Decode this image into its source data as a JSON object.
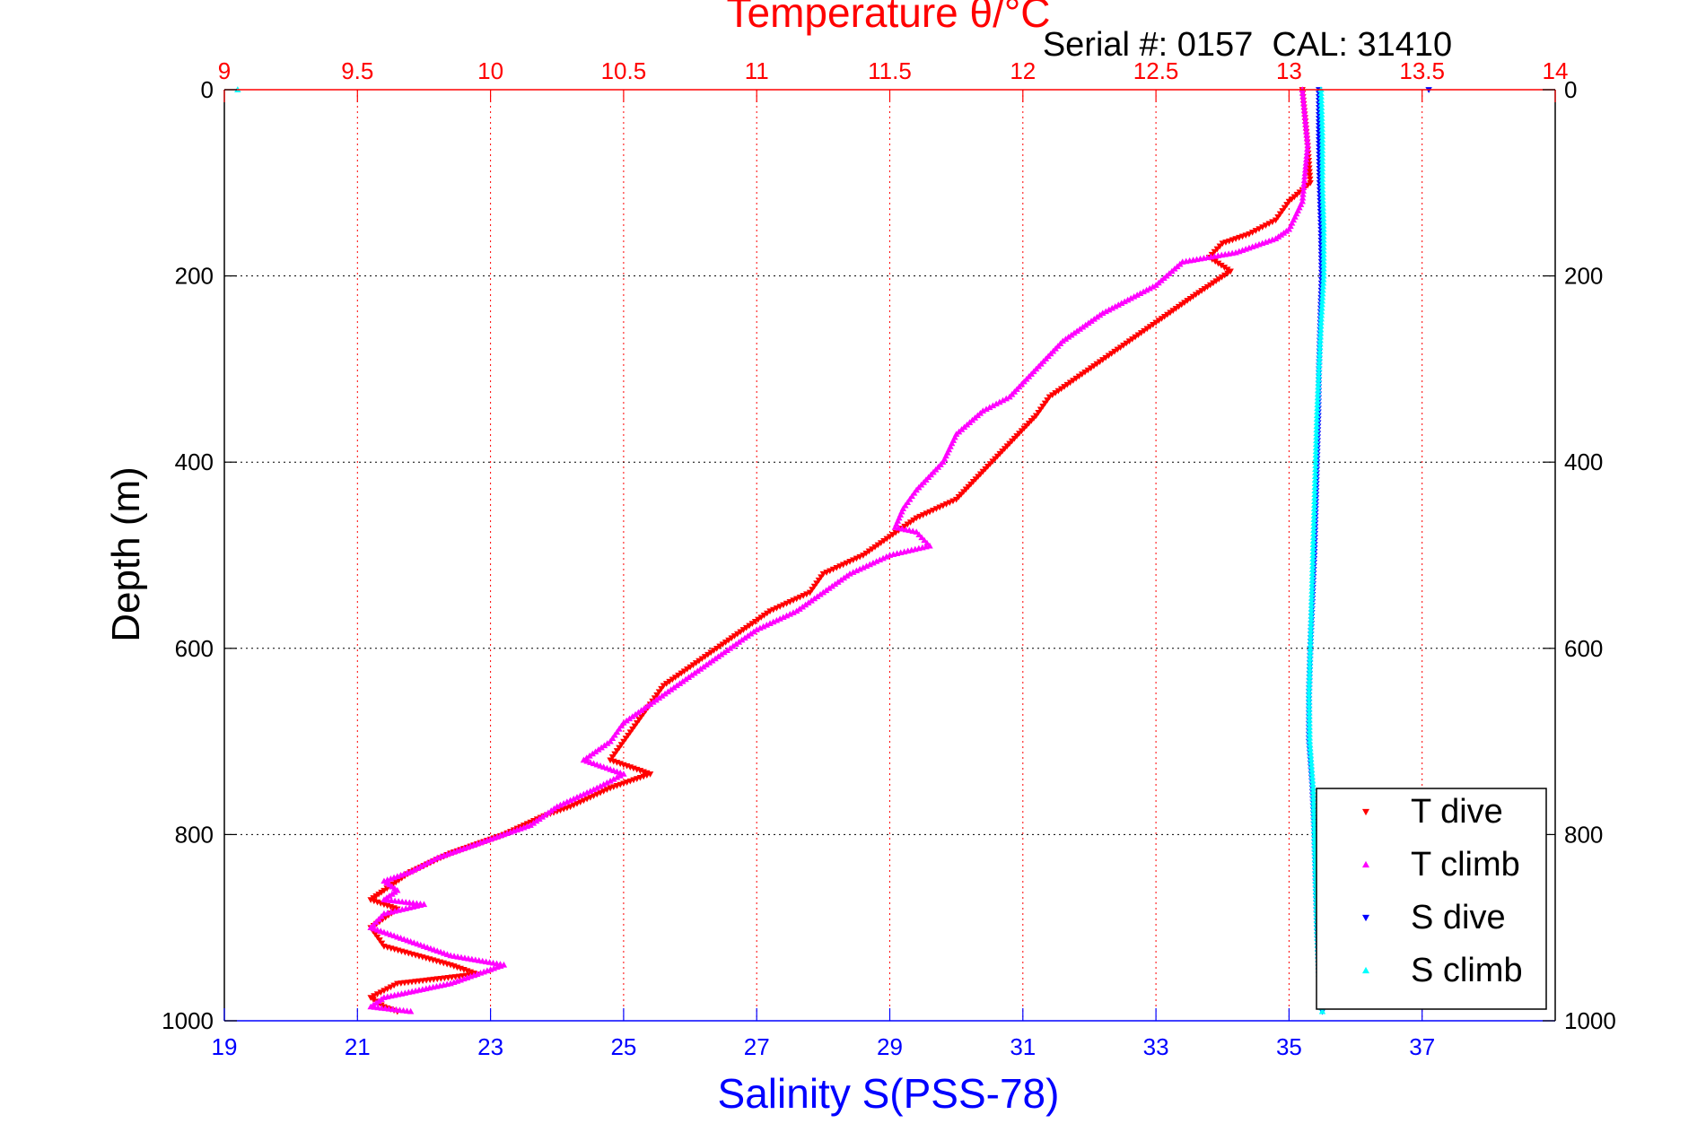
{
  "chart_data": {
    "type": "scatter",
    "title": "Temperature θ/°C",
    "subtitle": "Serial #: 0157  CAL: 31410",
    "ylabel": "Depth (m)",
    "xlabel_bottom": "Salinity S(PSS-78)",
    "ylim": [
      1000,
      0
    ],
    "y_reversed": true,
    "yticks": [
      "0",
      "200",
      "400",
      "600",
      "800",
      "1000"
    ],
    "y_tick_values": [
      0,
      200,
      400,
      600,
      800,
      1000
    ],
    "top_axis": {
      "label": "Temperature θ/°C",
      "range": [
        9,
        14
      ],
      "ticks": [
        "9",
        "9.5",
        "10",
        "10.5",
        "11",
        "11.5",
        "12",
        "12.5",
        "13",
        "13.5",
        "14"
      ],
      "tick_values": [
        9,
        9.5,
        10,
        10.5,
        11,
        11.5,
        12,
        12.5,
        13,
        13.5,
        14
      ],
      "color": "#ff0000"
    },
    "bottom_axis": {
      "label": "Salinity S(PSS-78)",
      "range": [
        19,
        39
      ],
      "ticks": [
        "19",
        "21",
        "23",
        "25",
        "27",
        "29",
        "31",
        "33",
        "35",
        "37"
      ],
      "tick_values": [
        19,
        21,
        23,
        25,
        27,
        29,
        31,
        33,
        35,
        37
      ],
      "color": "#0000ff"
    },
    "grid": true,
    "legend_position": "bottom-right",
    "series": [
      {
        "name": "T dive",
        "axis": "top",
        "color": "#ff0000",
        "marker": "triangle-down",
        "points": [
          [
            13.05,
            0
          ],
          [
            13.07,
            60
          ],
          [
            13.08,
            100
          ],
          [
            13.0,
            120
          ],
          [
            12.95,
            140
          ],
          [
            12.85,
            155
          ],
          [
            12.75,
            165
          ],
          [
            12.7,
            180
          ],
          [
            12.78,
            195
          ],
          [
            12.65,
            220
          ],
          [
            12.5,
            250
          ],
          [
            12.4,
            270
          ],
          [
            12.3,
            290
          ],
          [
            12.2,
            310
          ],
          [
            12.1,
            330
          ],
          [
            12.05,
            350
          ],
          [
            11.95,
            380
          ],
          [
            11.85,
            410
          ],
          [
            11.75,
            440
          ],
          [
            11.6,
            460
          ],
          [
            11.5,
            480
          ],
          [
            11.4,
            500
          ],
          [
            11.25,
            520
          ],
          [
            11.2,
            540
          ],
          [
            11.05,
            560
          ],
          [
            10.95,
            580
          ],
          [
            10.85,
            600
          ],
          [
            10.75,
            620
          ],
          [
            10.65,
            640
          ],
          [
            10.6,
            660
          ],
          [
            10.55,
            680
          ],
          [
            10.5,
            700
          ],
          [
            10.45,
            720
          ],
          [
            10.6,
            735
          ],
          [
            10.45,
            750
          ],
          [
            10.3,
            770
          ],
          [
            10.2,
            780
          ],
          [
            10.05,
            800
          ],
          [
            9.95,
            810
          ],
          [
            9.85,
            820
          ],
          [
            9.7,
            840
          ],
          [
            9.6,
            860
          ],
          [
            9.55,
            870
          ],
          [
            9.65,
            880
          ],
          [
            9.55,
            900
          ],
          [
            9.6,
            920
          ],
          [
            9.85,
            940
          ],
          [
            9.95,
            950
          ],
          [
            9.65,
            960
          ],
          [
            9.55,
            975
          ],
          [
            9.6,
            985
          ],
          [
            9.65,
            990
          ]
        ]
      },
      {
        "name": "T climb",
        "axis": "top",
        "color": "#ff00ff",
        "marker": "triangle-up",
        "points": [
          [
            13.05,
            0
          ],
          [
            13.07,
            60
          ],
          [
            13.05,
            120
          ],
          [
            13.0,
            150
          ],
          [
            12.95,
            160
          ],
          [
            12.8,
            175
          ],
          [
            12.6,
            185
          ],
          [
            12.5,
            210
          ],
          [
            12.3,
            240
          ],
          [
            12.15,
            270
          ],
          [
            12.05,
            300
          ],
          [
            11.95,
            330
          ],
          [
            11.85,
            345
          ],
          [
            11.75,
            370
          ],
          [
            11.7,
            400
          ],
          [
            11.6,
            430
          ],
          [
            11.55,
            450
          ],
          [
            11.52,
            470
          ],
          [
            11.6,
            475
          ],
          [
            11.65,
            490
          ],
          [
            11.5,
            500
          ],
          [
            11.35,
            520
          ],
          [
            11.25,
            540
          ],
          [
            11.15,
            560
          ],
          [
            11.0,
            580
          ],
          [
            10.9,
            600
          ],
          [
            10.8,
            620
          ],
          [
            10.7,
            640
          ],
          [
            10.6,
            660
          ],
          [
            10.5,
            680
          ],
          [
            10.45,
            700
          ],
          [
            10.35,
            720
          ],
          [
            10.5,
            735
          ],
          [
            10.4,
            750
          ],
          [
            10.25,
            770
          ],
          [
            10.15,
            790
          ],
          [
            10.0,
            805
          ],
          [
            9.9,
            815
          ],
          [
            9.8,
            825
          ],
          [
            9.7,
            840
          ],
          [
            9.6,
            850
          ],
          [
            9.65,
            860
          ],
          [
            9.6,
            870
          ],
          [
            9.75,
            875
          ],
          [
            9.6,
            885
          ],
          [
            9.55,
            900
          ],
          [
            9.7,
            915
          ],
          [
            9.85,
            930
          ],
          [
            10.05,
            940
          ],
          [
            9.85,
            960
          ],
          [
            9.6,
            975
          ],
          [
            9.55,
            985
          ],
          [
            9.7,
            990
          ]
        ]
      },
      {
        "name": "S dive",
        "axis": "bottom",
        "color": "#0000ff",
        "marker": "triangle-down",
        "points": [
          [
            35.45,
            0
          ],
          [
            35.45,
            50
          ],
          [
            35.46,
            100
          ],
          [
            35.48,
            150
          ],
          [
            35.49,
            200
          ],
          [
            35.47,
            250
          ],
          [
            35.45,
            300
          ],
          [
            35.44,
            350
          ],
          [
            35.42,
            400
          ],
          [
            35.4,
            450
          ],
          [
            35.38,
            500
          ],
          [
            35.35,
            550
          ],
          [
            35.32,
            600
          ],
          [
            35.3,
            650
          ],
          [
            35.3,
            700
          ],
          [
            35.35,
            750
          ],
          [
            35.38,
            800
          ],
          [
            35.4,
            850
          ],
          [
            35.42,
            900
          ],
          [
            35.45,
            950
          ],
          [
            35.5,
            990
          ]
        ]
      },
      {
        "name": "S climb",
        "axis": "bottom",
        "color": "#00ffff",
        "marker": "triangle-up",
        "points": [
          [
            35.48,
            0
          ],
          [
            35.5,
            50
          ],
          [
            35.5,
            100
          ],
          [
            35.52,
            150
          ],
          [
            35.52,
            200
          ],
          [
            35.48,
            250
          ],
          [
            35.45,
            300
          ],
          [
            35.42,
            350
          ],
          [
            35.4,
            400
          ],
          [
            35.38,
            450
          ],
          [
            35.36,
            500
          ],
          [
            35.34,
            550
          ],
          [
            35.32,
            600
          ],
          [
            35.3,
            650
          ],
          [
            35.31,
            700
          ],
          [
            35.36,
            750
          ],
          [
            35.38,
            800
          ],
          [
            35.4,
            850
          ],
          [
            35.42,
            900
          ],
          [
            35.45,
            950
          ],
          [
            35.5,
            990
          ]
        ]
      }
    ],
    "extra_points": [
      {
        "series": "S climb",
        "x": 19.2,
        "y": 0
      },
      {
        "series": "S dive",
        "x": 37.1,
        "y": 0
      }
    ]
  }
}
